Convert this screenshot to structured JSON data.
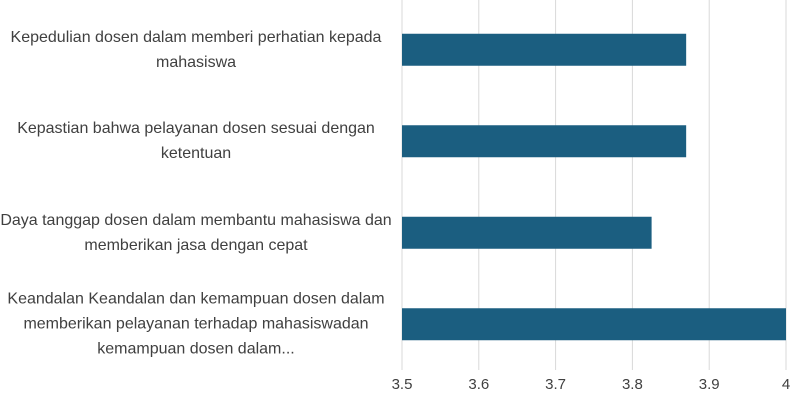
{
  "chart_data": {
    "type": "hbar",
    "categories": [
      "Kepedulian dosen dalam memberi perhatian kepada mahasiswa",
      "Kepastian bahwa pelayanan dosen sesuai dengan ketentuan",
      "Daya tanggap dosen dalam membantu mahasiswa dan memberikan jasa dengan cepat",
      "Keandalan Keandalan dan kemampuan dosen dalam memberikan pelayanan terhadap mahasiswadan kemampuan dosen dalam..."
    ],
    "values": [
      3.87,
      3.87,
      3.825,
      4.0
    ],
    "color": "#1b5e80",
    "xlim": [
      3.5,
      4
    ],
    "xticks": [
      3.5,
      3.6,
      3.7,
      3.8,
      3.9,
      4
    ],
    "grid": true
  }
}
